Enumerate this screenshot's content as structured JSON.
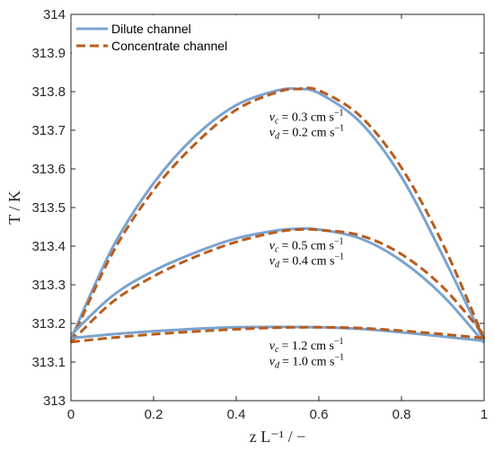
{
  "chart_data": {
    "type": "line",
    "xlabel": "z L⁻¹ / −",
    "ylabel": "T / K",
    "xlim": [
      0,
      1
    ],
    "ylim": [
      313,
      314
    ],
    "xticks": [
      "0",
      "0.2",
      "0.4",
      "0.6",
      "0.8",
      "1"
    ],
    "yticks": [
      "313",
      "313.1",
      "313.2",
      "313.3",
      "313.4",
      "313.5",
      "313.6",
      "313.7",
      "313.8",
      "313.9",
      "314"
    ],
    "grid": false,
    "legend_position": "top-left",
    "legend": [
      {
        "label": "Dilute channel",
        "color": "#7BA3CF",
        "style": "solid"
      },
      {
        "label": "Concentrate channel",
        "color": "#B85C1E",
        "style": "dashed"
      }
    ],
    "series": [
      {
        "name": "Dilute channel",
        "group": 1,
        "x": [
          0,
          0.1,
          0.2,
          0.3,
          0.4,
          0.5,
          0.55,
          0.6,
          0.7,
          0.8,
          0.9,
          1.0
        ],
        "y": [
          313.16,
          313.395,
          313.563,
          313.684,
          313.765,
          313.803,
          313.807,
          313.796,
          313.721,
          313.579,
          313.375,
          313.155
        ]
      },
      {
        "name": "Concentrate channel",
        "group": 1,
        "x": [
          0,
          0.1,
          0.2,
          0.3,
          0.4,
          0.5,
          0.55,
          0.6,
          0.7,
          0.8,
          0.9,
          1.0
        ],
        "y": [
          313.152,
          313.381,
          313.545,
          313.664,
          313.753,
          313.799,
          313.807,
          313.803,
          313.737,
          313.603,
          313.406,
          313.16
        ]
      },
      {
        "name": "Dilute channel",
        "group": 2,
        "x": [
          0,
          0.1,
          0.2,
          0.3,
          0.4,
          0.5,
          0.55,
          0.6,
          0.7,
          0.8,
          0.9,
          1.0
        ],
        "y": [
          313.17,
          313.271,
          313.336,
          313.383,
          313.42,
          313.441,
          313.445,
          313.443,
          313.42,
          313.362,
          313.272,
          313.15
        ]
      },
      {
        "name": "Concentrate channel",
        "group": 2,
        "x": [
          0,
          0.1,
          0.2,
          0.3,
          0.4,
          0.5,
          0.55,
          0.6,
          0.7,
          0.8,
          0.9,
          1.0
        ],
        "y": [
          313.152,
          313.255,
          313.322,
          313.372,
          313.411,
          313.437,
          313.443,
          313.442,
          313.428,
          313.379,
          313.294,
          313.17
        ]
      },
      {
        "name": "Dilute channel",
        "group": 3,
        "x": [
          0,
          0.1,
          0.2,
          0.3,
          0.4,
          0.5,
          0.6,
          0.7,
          0.8,
          0.9,
          1.0
        ],
        "y": [
          313.162,
          313.172,
          313.18,
          313.186,
          313.19,
          313.191,
          313.19,
          313.186,
          313.177,
          313.166,
          313.155
        ]
      },
      {
        "name": "Concentrate channel",
        "group": 3,
        "x": [
          0,
          0.1,
          0.2,
          0.3,
          0.4,
          0.5,
          0.6,
          0.7,
          0.8,
          0.9,
          1.0
        ],
        "y": [
          313.152,
          313.163,
          313.172,
          313.179,
          313.185,
          313.189,
          313.19,
          313.188,
          313.181,
          313.172,
          313.162
        ]
      }
    ],
    "annotations": [
      {
        "line1": "v_c = 0.3 cm s⁻¹",
        "line2": "v_d = 0.2 cm s⁻¹",
        "c_val": "= 0.3 cm s",
        "d_val": "= 0.2 cm s",
        "x": 0.48,
        "y1": 313.725,
        "y2": 313.685
      },
      {
        "line1": "v_c = 0.5 cm s⁻¹",
        "line2": "v_d = 0.4 cm s⁻¹",
        "c_val": "= 0.5 cm s",
        "d_val": "= 0.4 cm s",
        "x": 0.48,
        "y1": 313.392,
        "y2": 313.352
      },
      {
        "line1": "v_c = 1.2 cm s⁻¹",
        "line2": "v_d = 1.0 cm s⁻¹",
        "c_val": "= 1.2 cm s",
        "d_val": "= 1.0 cm s",
        "x": 0.48,
        "y1": 313.132,
        "y2": 313.092
      }
    ]
  }
}
